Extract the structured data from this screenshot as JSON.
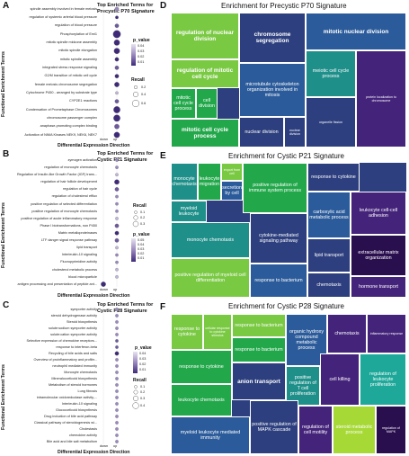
{
  "colors": {
    "dot_low": "#e8e4f0",
    "dot_mid": "#9a88bf",
    "dot_high": "#3f2a7a",
    "tm_green": "#22a84a",
    "tm_lime": "#7ac943",
    "tm_yellowgreen": "#a6d936",
    "tm_teal": "#1f8f8a",
    "tm_blue": "#2b5b9a",
    "tm_navy": "#2d3f7e",
    "tm_purple": "#44237a",
    "tm_darkpurple": "#2a0f4f",
    "tm_cyan": "#1ea89a"
  },
  "panels": {
    "A": {
      "letter": "A",
      "title": "Top Enriched Terms for\nPrecystic P70 Signature",
      "y_axis": "Functional Enrichment Terms",
      "x_axis": "Differential Expression Direction",
      "x_ticks": [
        "down",
        "up"
      ],
      "legend_p_title": "p_value",
      "legend_p_values": [
        "0.04",
        "0.03",
        "0.02",
        "0.01"
      ],
      "legend_r_title": "Recall",
      "legend_r_values": [
        "0.2",
        "0.4",
        "0.6"
      ]
    },
    "B": {
      "letter": "B",
      "title": "Top Enriched Terms for\nCystic P21 Signature",
      "y_axis": "Functional Enrichment Terms",
      "x_axis": "Differential Expression Direction",
      "x_ticks": [
        "down",
        "up"
      ],
      "legend_r_title": "Recall",
      "legend_r_values": [
        "0.1",
        "0.2",
        "0.3"
      ],
      "legend_p_title": "p_value",
      "legend_p_values": [
        "0.05",
        "0.04",
        "0.03",
        "0.02",
        "0.01"
      ]
    },
    "C": {
      "letter": "C",
      "title": "Top Enriched Terms for\nCystic P28 Signature",
      "y_axis": "Functional Enrichment Terms",
      "x_axis": "Differential Expression Direction",
      "x_ticks": [
        "down",
        "up"
      ],
      "legend_p_title": "p_value",
      "legend_p_values": [
        "0.04",
        "0.03",
        "0.02",
        "0.01"
      ],
      "legend_r_title": "Recall",
      "legend_r_values": [
        "0.1",
        "0.2",
        "0.3",
        "0.4"
      ]
    },
    "D": {
      "letter": "D",
      "title": "Enrichment for Precystic P70 Signature"
    },
    "E": {
      "letter": "E",
      "title": "Enrichment for Cystic P21 Signature"
    },
    "F": {
      "letter": "F",
      "title": "Enrichment for Cystic P28 Signature"
    }
  },
  "chart_data": [
    {
      "type": "scatter",
      "id": "A",
      "title": "Top Enriched Terms for Precystic P70 Signature",
      "xlabel": "Differential Expression Direction",
      "ylabel": "Functional Enrichment Terms",
      "categories_x": [
        "down",
        "up"
      ],
      "terms": [
        {
          "term": "spindle assembly involved in female meiosis",
          "x": "up",
          "recall": 0.2,
          "p": 0.03
        },
        {
          "term": "regulation of systemic arterial blood pressure",
          "x": "up",
          "recall": 0.1,
          "p": 0.01
        },
        {
          "term": "regulation of blood pressure",
          "x": "up",
          "recall": 0.2,
          "p": 0.02
        },
        {
          "term": "Phosphorylation of Emi1",
          "x": "up",
          "recall": 0.6,
          "p": 0.01
        },
        {
          "term": "mitotic spindle midzone assembly",
          "x": "up",
          "recall": 0.4,
          "p": 0.01
        },
        {
          "term": "mitotic spindle elongation",
          "x": "up",
          "recall": 0.4,
          "p": 0.01
        },
        {
          "term": "mitotic spindle assembly",
          "x": "up",
          "recall": 0.2,
          "p": 0.01
        },
        {
          "term": "integrated stress response signaling",
          "x": "up",
          "recall": 0.2,
          "p": 0.02
        },
        {
          "term": "G2/M transition of mitotic cell cycle",
          "x": "up",
          "recall": 0.2,
          "p": 0.01
        },
        {
          "term": "female meiosis chromosome segregation",
          "x": "up",
          "recall": 0.3,
          "p": 0.01
        },
        {
          "term": "Cytochrome P450 - arranged by substrate type",
          "x": "up",
          "recall": 0.1,
          "p": 0.04
        },
        {
          "term": "CYP2E1 reactions",
          "x": "up",
          "recall": 0.2,
          "p": 0.02
        },
        {
          "term": "Condensation of Prometaphase Chromosomes",
          "x": "up",
          "recall": 0.5,
          "p": 0.01
        },
        {
          "term": "chromosome passenger complex",
          "x": "up",
          "recall": 0.5,
          "p": 0.01
        },
        {
          "term": "anaphase-promoting complex binding",
          "x": "up",
          "recall": 0.3,
          "p": 0.02
        },
        {
          "term": "Activation of NIMA Kinases NEK9, NEK6, NEK7",
          "x": "up",
          "recall": 0.4,
          "p": 0.01
        }
      ]
    },
    {
      "type": "scatter",
      "id": "B",
      "title": "Top Enriched Terms for Cystic P21 Signature",
      "xlabel": "Differential Expression Direction",
      "ylabel": "Functional Enrichment Terms",
      "categories_x": [
        "down",
        "up"
      ],
      "terms": [
        {
          "term": "zymogen activation",
          "x": "up",
          "recall": 0.1,
          "p": 0.03
        },
        {
          "term": "regulation of monocyte chemotaxis",
          "x": "up",
          "recall": 0.1,
          "p": 0.03
        },
        {
          "term": "Regulation of Insulin-like Growth Factor (IGF) trans...",
          "x": "up",
          "recall": 0.1,
          "p": 0.04
        },
        {
          "term": "regulation of hair follicle development",
          "x": "up",
          "recall": 0.3,
          "p": 0.01
        },
        {
          "term": "regulation of hair cycle",
          "x": "up",
          "recall": 0.2,
          "p": 0.02
        },
        {
          "term": "regulation of cholesterol efflux",
          "x": "up",
          "recall": 0.1,
          "p": 0.03
        },
        {
          "term": "positive regulation of selected differentiation",
          "x": "up",
          "recall": 0.1,
          "p": 0.03
        },
        {
          "term": "positive regulation of monocyte chemotaxis",
          "x": "up",
          "recall": 0.1,
          "p": 0.03
        },
        {
          "term": "positive regulation of acute inflammatory response",
          "x": "up",
          "recall": 0.1,
          "p": 0.04
        },
        {
          "term": "Phase I biotransformations, non P450",
          "x": "up",
          "recall": 0.2,
          "p": 0.02
        },
        {
          "term": "Matrix metalloproteinases",
          "x": "up",
          "recall": 0.2,
          "p": 0.01
        },
        {
          "term": "LTF danger signal response pathway",
          "x": "up",
          "recall": 0.2,
          "p": 0.02
        },
        {
          "term": "lipid transport",
          "x": "up",
          "recall": 0.1,
          "p": 0.04
        },
        {
          "term": "Interleukin-10 signaling",
          "x": "up",
          "recall": 0.1,
          "p": 0.03
        },
        {
          "term": "Fluoropyrimidine activity",
          "x": "up",
          "recall": 0.1,
          "p": 0.03
        },
        {
          "term": "cholesterol metabolic process",
          "x": "up",
          "recall": 0.1,
          "p": 0.04
        },
        {
          "term": "blood microparticle",
          "x": "up",
          "recall": 0.1,
          "p": 0.04
        },
        {
          "term": "antigen processing and presentation of peptide ant...",
          "x": "down",
          "recall": 0.3,
          "p": 0.01
        }
      ]
    },
    {
      "type": "scatter",
      "id": "C",
      "title": "Top Enriched Terms for Cystic P28 Signature",
      "xlabel": "Differential Expression Direction",
      "ylabel": "Functional Enrichment Terms",
      "categories_x": [
        "down",
        "up"
      ],
      "terms": [
        {
          "term": "symporter activity",
          "x": "up",
          "recall": 0.1,
          "p": 0.03
        },
        {
          "term": "steroid dehydrogenase activity",
          "x": "up",
          "recall": 0.1,
          "p": 0.03
        },
        {
          "term": "Steroid biosynthesis",
          "x": "up",
          "recall": 0.1,
          "p": 0.03
        },
        {
          "term": "solute:sodium symporter activity",
          "x": "up",
          "recall": 0.1,
          "p": 0.03
        },
        {
          "term": "solute:cation symporter activity",
          "x": "up",
          "recall": 0.1,
          "p": 0.03
        },
        {
          "term": "Selective expression of chemokine receptors...",
          "x": "up",
          "recall": 0.1,
          "p": 0.02
        },
        {
          "term": "response to interferon-beta",
          "x": "up",
          "recall": 0.1,
          "p": 0.02
        },
        {
          "term": "Recycling of bile acids and salts",
          "x": "up",
          "recall": 0.2,
          "p": 0.01
        },
        {
          "term": "Overview of proinflammatory and profibr...",
          "x": "up",
          "recall": 0.1,
          "p": 0.03
        },
        {
          "term": "neutrophil mediated immunity",
          "x": "up",
          "recall": 0.1,
          "p": 0.03
        },
        {
          "term": "Monocyte chemotaxis",
          "x": "up",
          "recall": 0.1,
          "p": 0.03
        },
        {
          "term": "Mineralocorticoid biosynthesis",
          "x": "up",
          "recall": 0.1,
          "p": 0.03
        },
        {
          "term": "Metabolism of steroid hormones",
          "x": "up",
          "recall": 0.1,
          "p": 0.03
        },
        {
          "term": "Lung fibrosis",
          "x": "up",
          "recall": 0.1,
          "p": 0.03
        },
        {
          "term": "intramolecular oxidoreductase activity,...",
          "x": "up",
          "recall": 0.1,
          "p": 0.03
        },
        {
          "term": "Interleukin-10 signaling",
          "x": "up",
          "recall": 0.1,
          "p": 0.03
        },
        {
          "term": "Glucocorticoid biosynthesis",
          "x": "up",
          "recall": 0.1,
          "p": 0.03
        },
        {
          "term": "Drug induction of bile acid pathway",
          "x": "up",
          "recall": 0.1,
          "p": 0.03
        },
        {
          "term": "Classical pathway of steroidogenesis wi...",
          "x": "up",
          "recall": 0.1,
          "p": 0.03
        },
        {
          "term": "Cholestasis",
          "x": "up",
          "recall": 0.1,
          "p": 0.03
        },
        {
          "term": "chemokine activity",
          "x": "up",
          "recall": 0.1,
          "p": 0.03
        },
        {
          "term": "Bile acid and bile salt metabolism",
          "x": "up",
          "recall": 0.1,
          "p": 0.03
        }
      ]
    }
  ],
  "treemaps": {
    "D": [
      {
        "label": "regulation of nuclear division",
        "color": "#7ac943",
        "cls": "big"
      },
      {
        "label": "regulation of mitotic cell cycle",
        "color": "#7ac943",
        "cls": "big"
      },
      {
        "label": "mitotic cell cycle process",
        "color": "#22a84a",
        "cls": "med"
      },
      {
        "label": "cell division",
        "color": "#22a84a",
        "cls": "med"
      },
      {
        "label": "mitotic cell cycle process",
        "color": "#22a84a",
        "cls": "big"
      },
      {
        "label": "chromosome segregation",
        "color": "#2d3f7e",
        "cls": "big"
      },
      {
        "label": "mitotic nuclear division",
        "color": "#2b5b9a",
        "cls": "big"
      },
      {
        "label": "microtubule cytoskeleton organization involved in mitosis",
        "color": "#2b5b9a",
        "cls": "med"
      },
      {
        "label": "meiotic cell cycle process",
        "color": "#1f8f8a",
        "cls": "med"
      },
      {
        "label": "nuclear division",
        "color": "#2d3f7e",
        "cls": "med"
      },
      {
        "label": "nuclear division",
        "color": "#2d3f7e",
        "cls": "small"
      },
      {
        "label": "organelle fission",
        "color": "#2d3f7e",
        "cls": "small"
      },
      {
        "label": "protein localization to chromosome",
        "color": "#44237a",
        "cls": "small"
      }
    ],
    "E": [
      {
        "label": "monocyte chemotaxis",
        "color": "#1f8f8a",
        "cls": "med"
      },
      {
        "label": "leukocyte migration",
        "color": "#22a84a",
        "cls": "med"
      },
      {
        "label": "export from cell",
        "color": "#7ac943",
        "cls": "small"
      },
      {
        "label": "secretion by cell",
        "color": "#2b5b9a",
        "cls": "med"
      },
      {
        "label": "positive regulation of immune system process",
        "color": "#22a84a",
        "cls": "med"
      },
      {
        "label": "response to cytokine",
        "color": "#2d3f7e",
        "cls": "med"
      },
      {
        "label": "myeloid leukocyte",
        "color": "#1f8f8a",
        "cls": "med"
      },
      {
        "label": "monocyte chemotaxis",
        "color": "#1f8f8a",
        "cls": "med"
      },
      {
        "label": "cytokine-mediated signaling pathway",
        "color": "#2d3f7e",
        "cls": "med"
      },
      {
        "label": "carboxylic acid metabolic process",
        "color": "#2b5b9a",
        "cls": "med"
      },
      {
        "label": "leukocyte cell-cell adhesion",
        "color": "#44237a",
        "cls": "med"
      },
      {
        "label": "extracellular matrix organization",
        "color": "#2a0f4f",
        "cls": "med"
      },
      {
        "label": "lipid transport",
        "color": "#2d3f7e",
        "cls": "med"
      },
      {
        "label": "positive regulation of myeloid cell differentiation",
        "color": "#7ac943",
        "cls": "med"
      },
      {
        "label": "response to bacterium",
        "color": "#2b5b9a",
        "cls": "med"
      },
      {
        "label": "chemotaxis",
        "color": "#2d3f7e",
        "cls": "med"
      },
      {
        "label": "hormone transport",
        "color": "#44237a",
        "cls": "med"
      }
    ],
    "F": [
      {
        "label": "response to cytokine",
        "color": "#7ac943",
        "cls": "med"
      },
      {
        "label": "cellular response to cytokine stimulus",
        "color": "#7ac943",
        "cls": "small"
      },
      {
        "label": "response to bacterium",
        "color": "#7ac943",
        "cls": "med"
      },
      {
        "label": "response to bacterium",
        "color": "#22a84a",
        "cls": "med"
      },
      {
        "label": "organic hydroxy compound metabolic process",
        "color": "#2b5b9a",
        "cls": "med"
      },
      {
        "label": "chemotaxis",
        "color": "#44237a",
        "cls": "med"
      },
      {
        "label": "inflammatory response",
        "color": "#44237a",
        "cls": "small"
      },
      {
        "label": "response to cytokine",
        "color": "#22a84a",
        "cls": "med"
      },
      {
        "label": "anion transport",
        "color": "#2d3f7e",
        "cls": "big"
      },
      {
        "label": "positive regulation of T cell proliferation",
        "color": "#1f8f8a",
        "cls": "med"
      },
      {
        "label": "cell killing",
        "color": "#44237a",
        "cls": "med"
      },
      {
        "label": "regulation of leukocyte proliferation",
        "color": "#1ea89a",
        "cls": "med"
      },
      {
        "label": "leukocyte chemotaxis",
        "color": "#22a84a",
        "cls": "med"
      },
      {
        "label": "myeloid leukocyte mediated immunity",
        "color": "#2b5b9a",
        "cls": "med"
      },
      {
        "label": "positive regulation of MAPK cascade",
        "color": "#2d3f7e",
        "cls": "med"
      },
      {
        "label": "regulation of cell motility",
        "color": "#44237a",
        "cls": "med"
      },
      {
        "label": "steroid metabolic process",
        "color": "#a6d936",
        "cls": "med"
      },
      {
        "label": "regulation of MAPK",
        "color": "#2a0f4f",
        "cls": "small"
      }
    ]
  }
}
